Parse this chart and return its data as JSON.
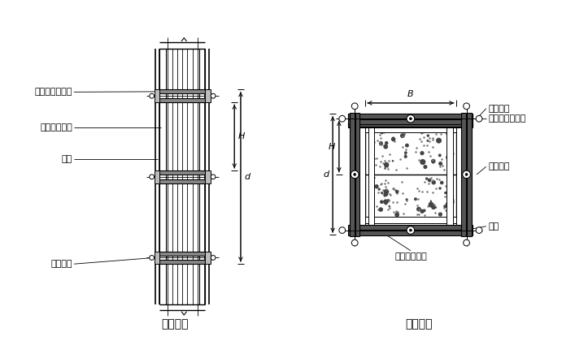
{
  "title_left": "柱立面图",
  "title_right": "柱剖面图",
  "label_zhuzhuan": "柱箍（圆钢管）",
  "label_shumulv": "竖愣（方木）",
  "label_mianban": "面板",
  "label_duila": "对拉螺栓",
  "label_B": "B",
  "label_d": "d",
  "label_H": "H",
  "bg_color": "#ffffff",
  "line_color": "#000000",
  "font_size": 8,
  "title_font_size": 10
}
